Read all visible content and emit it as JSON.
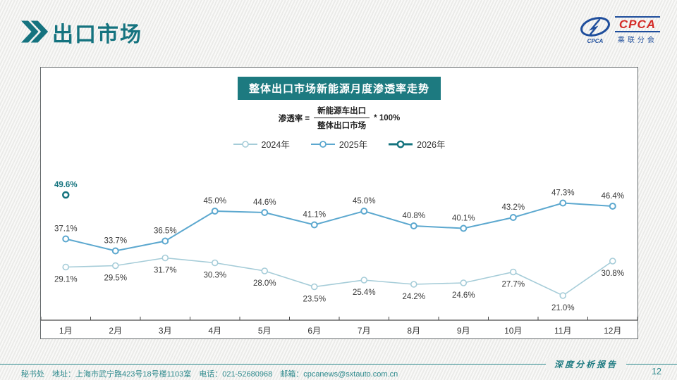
{
  "header": {
    "title": "出口市场"
  },
  "logo": {
    "brand": "CPCA",
    "brand_cn": "乘联分会",
    "oval_caption": "CPCA"
  },
  "chart": {
    "title": "整体出口市场新能源月度渗透率走势",
    "formula": {
      "lhs": "渗透率 =",
      "numerator": "新能源车出口",
      "denominator": "整体出口市场",
      "rhs": "* 100%"
    }
  },
  "chart_data": {
    "type": "line",
    "title": "整体出口市场新能源月度渗透率走势",
    "categories": [
      "1月",
      "2月",
      "3月",
      "4月",
      "5月",
      "6月",
      "7月",
      "8月",
      "9月",
      "10月",
      "11月",
      "12月"
    ],
    "series": [
      {
        "name": "2024年",
        "color": "#a5ccd8",
        "label_position": "below",
        "line_width": 1.6,
        "values": [
          29.1,
          29.5,
          31.7,
          30.3,
          28.0,
          23.5,
          25.4,
          24.2,
          24.6,
          27.7,
          21.0,
          30.8
        ]
      },
      {
        "name": "2025年",
        "color": "#5ca8cf",
        "label_position": "above",
        "line_width": 2,
        "values": [
          37.1,
          33.7,
          36.5,
          45.0,
          44.6,
          41.1,
          45.0,
          40.8,
          40.1,
          43.2,
          47.3,
          46.4
        ]
      },
      {
        "name": "2026年",
        "color": "#14737e",
        "label_position": "above",
        "line_width": 2.5,
        "label_bold": true,
        "values": [
          49.6,
          null,
          null,
          null,
          null,
          null,
          null,
          null,
          null,
          null,
          null,
          null
        ]
      }
    ],
    "unit": "%",
    "ylim": [
      14,
      60
    ],
    "grid": false,
    "legend_position": "top"
  },
  "footer": {
    "info": "秘书处　地址：上海市武宁路423号18号楼1103室　电话：021-52680968　邮箱：cpcanews@sxtauto.com.cn",
    "report_label": "深度分析报告",
    "page": "12"
  }
}
